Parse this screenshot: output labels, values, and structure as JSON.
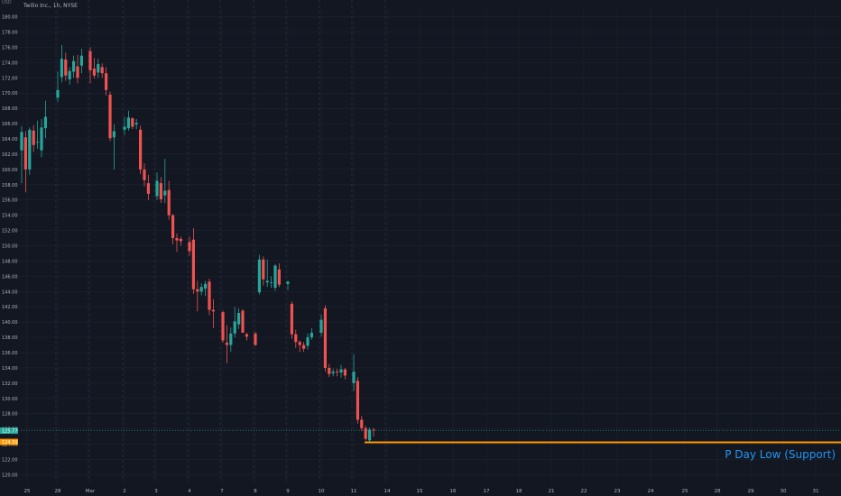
{
  "header": {
    "title": "Twilio Inc., 1h, NYSE",
    "currency_top": "USD"
  },
  "annotation": {
    "label": "P Day Low (Support)",
    "color": "#ff9800",
    "text_color": "#2196f3"
  },
  "price_badges": [
    {
      "value": "125.77",
      "color": "#26a69a"
    },
    {
      "value": "124.30",
      "color": "#ff9800"
    }
  ],
  "colors": {
    "up": "#26a69a",
    "down": "#ef5350",
    "background": "#131722",
    "grid": "#1f2433",
    "separator": "#2a3140",
    "support": "#ff9800"
  },
  "chart_data": {
    "type": "candlestick",
    "title": "Twilio Inc., 1h, NYSE",
    "ylim": [
      118,
      181
    ],
    "y_ticks": [
      "120.00",
      "122.00",
      "124.00",
      "126.00",
      "128.00",
      "130.00",
      "132.00",
      "134.00",
      "136.00",
      "138.00",
      "140.00",
      "142.00",
      "144.00",
      "146.00",
      "148.00",
      "150.00",
      "152.00",
      "154.00",
      "156.00",
      "158.00",
      "160.00",
      "162.00",
      "164.00",
      "166.00",
      "168.00",
      "170.00",
      "172.00",
      "174.00",
      "176.00",
      "178.00",
      "180.00"
    ],
    "x_ticks": [
      "25",
      "28",
      "Mar",
      "2",
      "3",
      "4",
      "7",
      "8",
      "9",
      "10",
      "11",
      "14",
      "15",
      "16",
      "17",
      "18",
      "21",
      "22",
      "23",
      "24",
      "25",
      "28",
      "29",
      "30",
      "31"
    ],
    "support_level": 124.3,
    "last_price": 125.77,
    "candles": [
      {
        "o": 162.5,
        "h": 165.7,
        "l": 158.2,
        "c": 164.9
      },
      {
        "o": 164.2,
        "h": 165.0,
        "l": 157.0,
        "c": 160.0
      },
      {
        "o": 160.0,
        "h": 165.5,
        "l": 159.3,
        "c": 165.2
      },
      {
        "o": 165.1,
        "h": 165.8,
        "l": 162.3,
        "c": 163.2
      },
      {
        "o": 163.6,
        "h": 166.4,
        "l": 162.7,
        "c": 163.6
      },
      {
        "o": 162.5,
        "h": 166.6,
        "l": 161.6,
        "c": 165.5
      },
      {
        "o": 165.4,
        "h": 169.0,
        "l": 164.1,
        "c": 166.9
      },
      {
        "o": 169.4,
        "h": 172.8,
        "l": 168.8,
        "c": 170.4
      },
      {
        "o": 172.1,
        "h": 176.3,
        "l": 171.4,
        "c": 174.5
      },
      {
        "o": 174.4,
        "h": 175.3,
        "l": 171.6,
        "c": 172.3
      },
      {
        "o": 171.8,
        "h": 173.4,
        "l": 171.1,
        "c": 172.9
      },
      {
        "o": 172.8,
        "h": 174.9,
        "l": 172.0,
        "c": 174.2
      },
      {
        "o": 173.5,
        "h": 175.0,
        "l": 171.3,
        "c": 172.0
      },
      {
        "o": 173.6,
        "h": 175.8,
        "l": 172.6,
        "c": 174.9
      },
      {
        "o": 175.5,
        "h": 176.0,
        "l": 171.3,
        "c": 173.0
      },
      {
        "o": 173.2,
        "h": 174.6,
        "l": 171.9,
        "c": 172.3
      },
      {
        "o": 172.7,
        "h": 174.5,
        "l": 172.0,
        "c": 173.8
      },
      {
        "o": 173.4,
        "h": 173.9,
        "l": 172.0,
        "c": 172.6
      },
      {
        "o": 172.6,
        "h": 173.4,
        "l": 169.7,
        "c": 170.4
      },
      {
        "o": 169.8,
        "h": 170.2,
        "l": 163.7,
        "c": 164.1
      },
      {
        "o": 164.2,
        "h": 165.9,
        "l": 160.0,
        "c": 165.0
      },
      {
        "o": 165.2,
        "h": 166.9,
        "l": 164.5,
        "c": 165.6
      },
      {
        "o": 165.4,
        "h": 167.7,
        "l": 165.1,
        "c": 166.8
      },
      {
        "o": 166.7,
        "h": 166.8,
        "l": 165.3,
        "c": 165.6
      },
      {
        "o": 165.9,
        "h": 166.6,
        "l": 165.3,
        "c": 166.1
      },
      {
        "o": 165.2,
        "h": 165.7,
        "l": 159.4,
        "c": 160.0
      },
      {
        "o": 160.0,
        "h": 160.8,
        "l": 157.8,
        "c": 158.6
      },
      {
        "o": 158.2,
        "h": 159.3,
        "l": 156.0,
        "c": 156.8
      },
      {
        "o": 156.5,
        "h": 159.6,
        "l": 156.0,
        "c": 158.5
      },
      {
        "o": 158.2,
        "h": 159.0,
        "l": 155.6,
        "c": 156.1
      },
      {
        "o": 156.6,
        "h": 161.4,
        "l": 155.6,
        "c": 157.2
      },
      {
        "o": 157.3,
        "h": 158.5,
        "l": 153.4,
        "c": 154.0
      },
      {
        "o": 154.0,
        "h": 154.2,
        "l": 150.2,
        "c": 151.0
      },
      {
        "o": 151.0,
        "h": 151.6,
        "l": 149.2,
        "c": 150.7
      },
      {
        "o": 150.9,
        "h": 151.2,
        "l": 150.0,
        "c": 150.6
      },
      {
        "o": 150.5,
        "h": 151.2,
        "l": 148.7,
        "c": 149.3
      },
      {
        "o": 150.8,
        "h": 152.3,
        "l": 143.7,
        "c": 144.3
      },
      {
        "o": 144.3,
        "h": 145.4,
        "l": 141.4,
        "c": 144.0
      },
      {
        "o": 144.0,
        "h": 145.1,
        "l": 143.5,
        "c": 144.6
      },
      {
        "o": 144.4,
        "h": 145.4,
        "l": 143.4,
        "c": 145.0
      },
      {
        "o": 145.3,
        "h": 145.7,
        "l": 140.9,
        "c": 141.6
      },
      {
        "o": 141.6,
        "h": 143.0,
        "l": 139.2,
        "c": 141.4
      },
      {
        "o": 141.3,
        "h": 141.5,
        "l": 137.3,
        "c": 137.6
      },
      {
        "o": 137.3,
        "h": 139.6,
        "l": 134.6,
        "c": 137.0
      },
      {
        "o": 137.0,
        "h": 139.3,
        "l": 136.1,
        "c": 138.5
      },
      {
        "o": 138.5,
        "h": 142.0,
        "l": 138.0,
        "c": 140.1
      },
      {
        "o": 139.7,
        "h": 141.8,
        "l": 139.1,
        "c": 141.2
      },
      {
        "o": 141.5,
        "h": 141.7,
        "l": 138.6,
        "c": 138.6
      },
      {
        "o": 138.4,
        "h": 138.6,
        "l": 137.6,
        "c": 138.1
      },
      {
        "o": 138.5,
        "h": 138.7,
        "l": 136.9,
        "c": 137.0
      },
      {
        "o": 143.9,
        "h": 148.8,
        "l": 143.6,
        "c": 148.2
      },
      {
        "o": 148.2,
        "h": 148.6,
        "l": 144.8,
        "c": 145.6
      },
      {
        "o": 145.2,
        "h": 148.2,
        "l": 144.6,
        "c": 145.4
      },
      {
        "o": 145.2,
        "h": 146.0,
        "l": 144.5,
        "c": 145.2
      },
      {
        "o": 144.5,
        "h": 147.6,
        "l": 144.1,
        "c": 147.4
      },
      {
        "o": 146.9,
        "h": 147.7,
        "l": 144.6,
        "c": 144.9
      },
      {
        "o": 145.0,
        "h": 145.4,
        "l": 144.2,
        "c": 145.3
      },
      {
        "o": 142.4,
        "h": 142.7,
        "l": 137.8,
        "c": 138.4
      },
      {
        "o": 138.4,
        "h": 139.0,
        "l": 136.6,
        "c": 137.4
      },
      {
        "o": 137.4,
        "h": 137.6,
        "l": 136.1,
        "c": 137.0
      },
      {
        "o": 137.0,
        "h": 137.4,
        "l": 136.1,
        "c": 136.5
      },
      {
        "o": 136.9,
        "h": 138.5,
        "l": 136.4,
        "c": 138.0
      },
      {
        "o": 138.0,
        "h": 139.2,
        "l": 137.7,
        "c": 138.6
      },
      {
        "o": 138.6,
        "h": 141.0,
        "l": 138.1,
        "c": 140.3
      },
      {
        "o": 141.8,
        "h": 142.2,
        "l": 133.5,
        "c": 134.0
      },
      {
        "o": 134.0,
        "h": 134.5,
        "l": 132.8,
        "c": 133.2
      },
      {
        "o": 133.3,
        "h": 133.9,
        "l": 132.9,
        "c": 133.5
      },
      {
        "o": 133.5,
        "h": 133.9,
        "l": 132.9,
        "c": 133.4
      },
      {
        "o": 133.4,
        "h": 134.4,
        "l": 132.7,
        "c": 133.8
      },
      {
        "o": 133.8,
        "h": 134.0,
        "l": 132.5,
        "c": 133.0
      },
      {
        "o": 132.0,
        "h": 135.8,
        "l": 131.0,
        "c": 133.5
      },
      {
        "o": 132.3,
        "h": 132.8,
        "l": 126.7,
        "c": 127.2
      },
      {
        "o": 127.2,
        "h": 127.7,
        "l": 125.7,
        "c": 126.1
      },
      {
        "o": 126.1,
        "h": 126.4,
        "l": 124.5,
        "c": 124.7
      },
      {
        "o": 124.5,
        "h": 126.2,
        "l": 124.3,
        "c": 125.9
      },
      {
        "o": 125.9,
        "h": 126.1,
        "l": 125.0,
        "c": 125.8
      }
    ]
  }
}
